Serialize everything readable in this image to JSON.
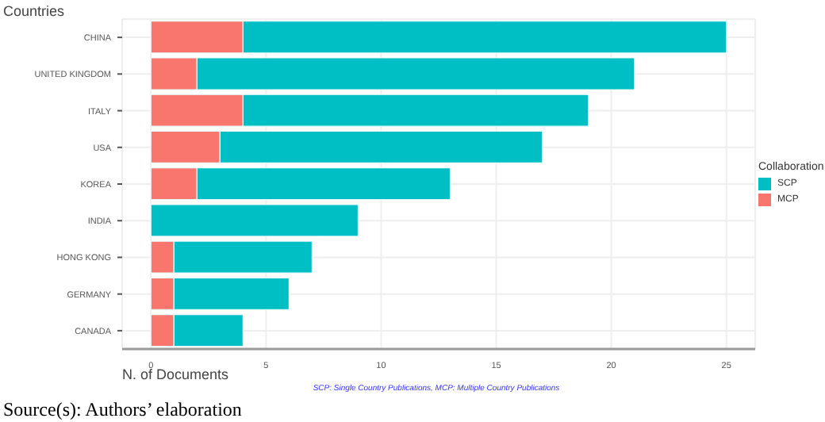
{
  "chart_data": {
    "type": "bar",
    "orientation": "horizontal",
    "stacked": true,
    "ylabel": "Countries",
    "xlabel": "N. of Documents",
    "legend_title": "Collaboration",
    "legend": "right",
    "grid": true,
    "categories": [
      "CHINA",
      "UNITED KINGDOM",
      "ITALY",
      "USA",
      "KOREA",
      "INDIA",
      "HONG KONG",
      "GERMANY",
      "CANADA"
    ],
    "series": [
      {
        "name": "MCP",
        "color": "#f8766d",
        "values": [
          4,
          2,
          4,
          3,
          2,
          0,
          1,
          1,
          1
        ]
      },
      {
        "name": "SCP",
        "color": "#00bfc4",
        "values": [
          21,
          19,
          15,
          14,
          11,
          9,
          6,
          5,
          3
        ]
      }
    ],
    "xlim": [
      -1.25,
      26.25
    ],
    "xticks": [
      0,
      5,
      10,
      15,
      20,
      25
    ],
    "annotations": [
      "SCP: Single Country Publications, MCP: Multiple Country Publications",
      "Source(s): Authors’ elaboration"
    ]
  }
}
